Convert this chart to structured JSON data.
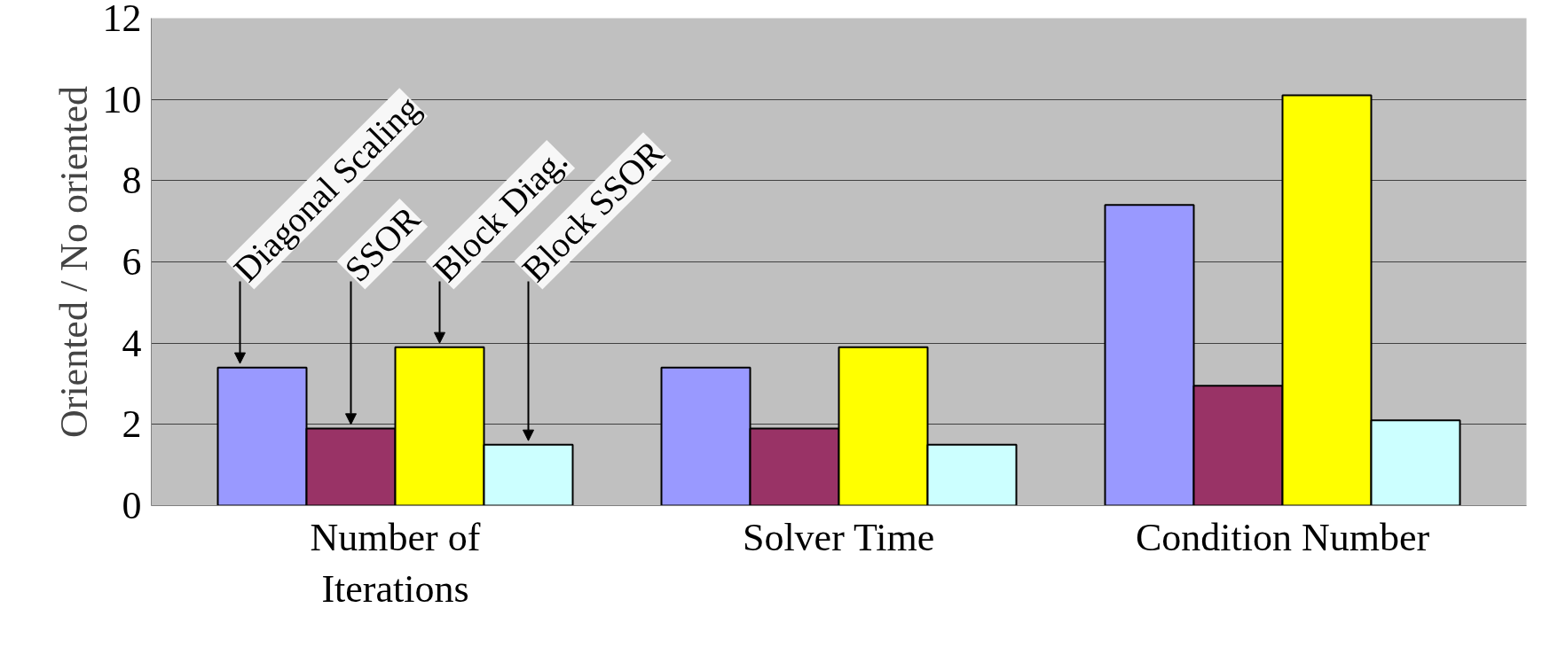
{
  "chart_data": {
    "type": "bar",
    "ylabel": "Oriented / No oriented",
    "categories": [
      "Number of\nIterations",
      "Solver Time",
      "Condition Number"
    ],
    "series": [
      {
        "name": "Diagonal Scaling",
        "color": "#9999ff",
        "values": [
          3.4,
          3.4,
          7.4
        ]
      },
      {
        "name": "SSOR",
        "color": "#993366",
        "values": [
          1.9,
          1.9,
          2.95
        ]
      },
      {
        "name": "Block Diag.",
        "color": "#ffff00",
        "values": [
          3.9,
          3.9,
          10.1
        ]
      },
      {
        "name": "Block SSOR",
        "color": "#ccffff",
        "values": [
          1.5,
          1.5,
          2.1
        ]
      }
    ],
    "ylim": [
      0,
      12
    ],
    "yticks": [
      0,
      2,
      4,
      6,
      8,
      10,
      12
    ],
    "grid": "y"
  }
}
